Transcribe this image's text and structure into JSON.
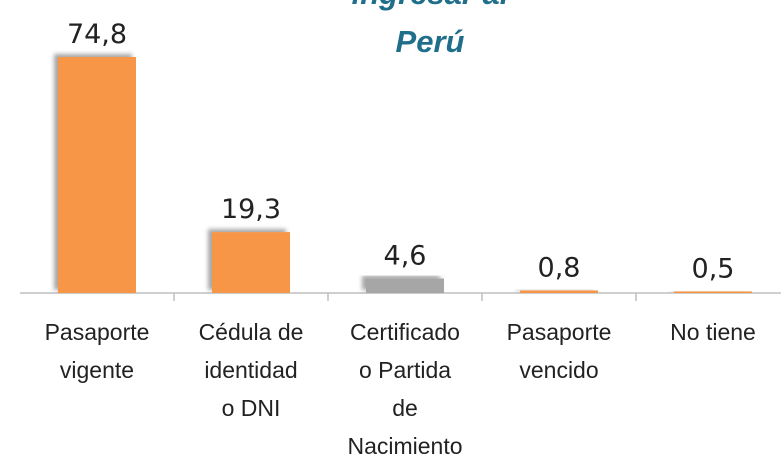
{
  "chart_data": {
    "type": "bar",
    "title": [
      "ingresar al",
      "Perú"
    ],
    "categories": [
      [
        "Pasaporte",
        "vigente"
      ],
      [
        "Cédula de",
        "identidad",
        "o DNI"
      ],
      [
        "Certificado",
        "o Partida",
        "de",
        "Nacimiento"
      ],
      [
        "Pasaporte",
        "vencido"
      ],
      [
        "No tiene"
      ]
    ],
    "values": [
      74.8,
      19.3,
      4.6,
      0.8,
      0.5
    ],
    "value_labels": [
      "74,8",
      "19,3",
      "4,6",
      "0,8",
      "0,5"
    ],
    "colors": [
      "#F79646",
      "#F79646",
      "#A6A6A6",
      "#F79646",
      "#F79646"
    ]
  }
}
